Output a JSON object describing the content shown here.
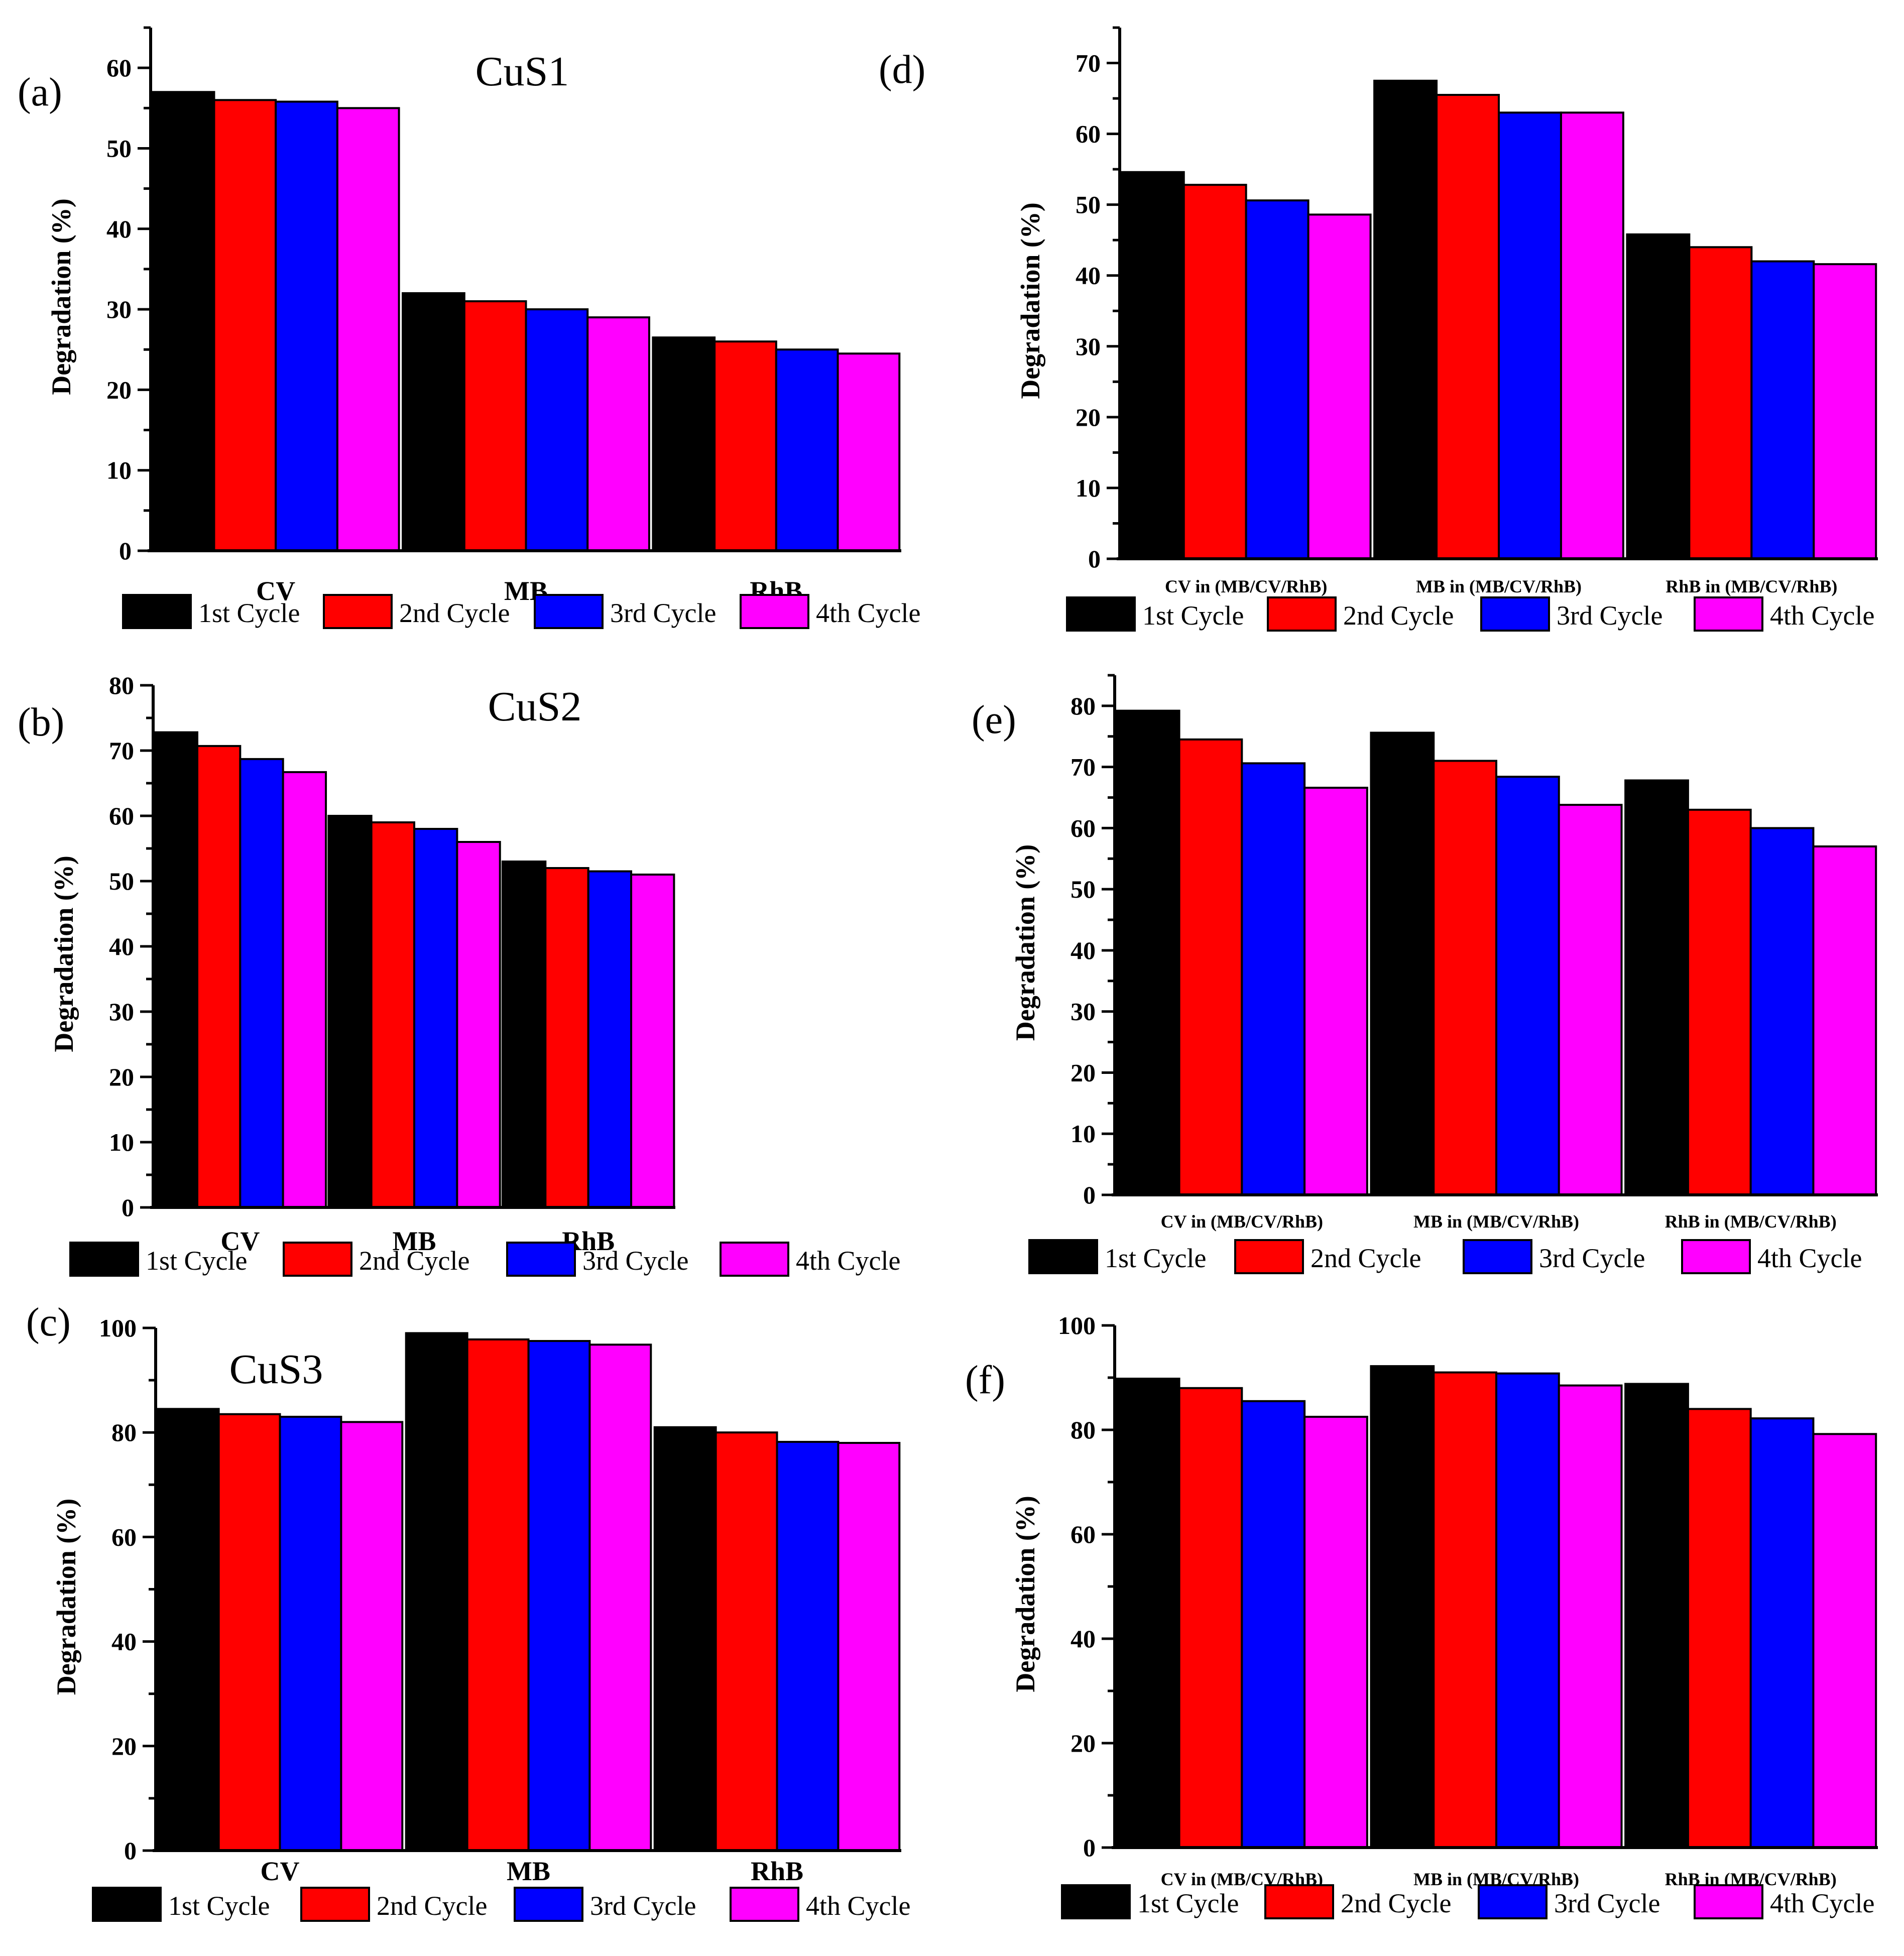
{
  "figure": {
    "colors": {
      "series": [
        "#000000",
        "#ff0000",
        "#0000ff",
        "#ff00ff"
      ],
      "axis": "#000000",
      "background": "#ffffff"
    }
  },
  "chart_data": [
    {
      "id": "a",
      "type": "bar",
      "panel_label": "(a)",
      "title": "CuS1",
      "ylabel": "Degradation (%)",
      "xlabel": "",
      "ylim": [
        0,
        65
      ],
      "yticks": [
        0,
        10,
        20,
        30,
        40,
        50,
        60
      ],
      "categories": [
        "CV",
        "MB",
        "RhB"
      ],
      "legend": "bottom",
      "series": [
        {
          "name": "1st Cycle",
          "values": [
            57,
            32,
            26.5
          ]
        },
        {
          "name": "2nd Cycle",
          "values": [
            56,
            31,
            26
          ]
        },
        {
          "name": "3rd Cycle",
          "values": [
            55.8,
            30,
            25
          ]
        },
        {
          "name": "4th Cycle",
          "values": [
            55,
            29,
            24.5
          ]
        }
      ]
    },
    {
      "id": "b",
      "type": "bar",
      "panel_label": "(b)",
      "title": "CuS2",
      "ylabel": "Degradation (%)",
      "xlabel": "",
      "ylim": [
        0,
        80
      ],
      "yticks": [
        0,
        10,
        20,
        30,
        40,
        50,
        60,
        70,
        80
      ],
      "categories": [
        "CV",
        "MB",
        "RhB"
      ],
      "legend": "bottom",
      "series": [
        {
          "name": "1st Cycle",
          "values": [
            72.8,
            60,
            53
          ]
        },
        {
          "name": "2nd Cycle",
          "values": [
            70.7,
            59,
            52
          ]
        },
        {
          "name": "3rd Cycle",
          "values": [
            68.7,
            58,
            51.5
          ]
        },
        {
          "name": "4th Cycle",
          "values": [
            66.7,
            56,
            51
          ]
        }
      ]
    },
    {
      "id": "c",
      "type": "bar",
      "panel_label": "(c)",
      "title": "CuS3",
      "ylabel": "Degradation (%)",
      "xlabel": "",
      "ylim": [
        0,
        100
      ],
      "yticks": [
        0,
        20,
        40,
        60,
        80,
        100
      ],
      "categories": [
        "CV",
        "MB",
        "RhB"
      ],
      "legend": "bottom",
      "series": [
        {
          "name": "1st Cycle",
          "values": [
            84.5,
            99,
            81
          ]
        },
        {
          "name": "2nd Cycle",
          "values": [
            83.5,
            97.8,
            80
          ]
        },
        {
          "name": "3rd Cycle",
          "values": [
            83,
            97.5,
            78.2
          ]
        },
        {
          "name": "4th Cycle",
          "values": [
            82,
            96.8,
            78
          ]
        }
      ]
    },
    {
      "id": "d",
      "type": "bar",
      "panel_label": "(d)",
      "title": "",
      "ylabel": "Degradation (%)",
      "xlabel": "",
      "ylim": [
        0,
        75
      ],
      "yticks": [
        0,
        10,
        20,
        30,
        40,
        50,
        60,
        70
      ],
      "categories": [
        "CV in (MB/CV/RhB)",
        "MB in (MB/CV/RhB)",
        "RhB in (MB/CV/RhB)"
      ],
      "legend": "bottom",
      "series": [
        {
          "name": "1st Cycle",
          "values": [
            54.6,
            67.5,
            45.8
          ]
        },
        {
          "name": "2nd Cycle",
          "values": [
            52.8,
            65.5,
            44
          ]
        },
        {
          "name": "3rd Cycle",
          "values": [
            50.6,
            63,
            42
          ]
        },
        {
          "name": "4th Cycle",
          "values": [
            48.6,
            63,
            41.6
          ]
        }
      ]
    },
    {
      "id": "e",
      "type": "bar",
      "panel_label": "(e)",
      "title": "",
      "ylabel": "Degradation (%)",
      "xlabel": "",
      "ylim": [
        0,
        85
      ],
      "yticks": [
        0,
        10,
        20,
        30,
        40,
        50,
        60,
        70,
        80
      ],
      "categories": [
        "CV in (MB/CV/RhB)",
        "MB in (MB/CV/RhB)",
        "RhB in (MB/CV/RhB)"
      ],
      "legend": "bottom",
      "series": [
        {
          "name": "1st Cycle",
          "values": [
            79.2,
            75.6,
            67.8
          ]
        },
        {
          "name": "2nd Cycle",
          "values": [
            74.5,
            71,
            63
          ]
        },
        {
          "name": "3rd Cycle",
          "values": [
            70.6,
            68.4,
            60
          ]
        },
        {
          "name": "4th Cycle",
          "values": [
            66.6,
            63.8,
            57
          ]
        }
      ]
    },
    {
      "id": "f",
      "type": "bar",
      "panel_label": "(f)",
      "title": "",
      "ylabel": "Degradation (%)",
      "xlabel": "",
      "ylim": [
        0,
        100
      ],
      "yticks": [
        0,
        20,
        40,
        60,
        80,
        100
      ],
      "categories": [
        "CV in (MB/CV/RhB)",
        "MB in (MB/CV/RhB)",
        "RhB in (MB/CV/RhB)"
      ],
      "legend": "bottom",
      "series": [
        {
          "name": "1st Cycle",
          "values": [
            89.8,
            92.2,
            88.8
          ]
        },
        {
          "name": "2nd Cycle",
          "values": [
            88,
            91,
            84
          ]
        },
        {
          "name": "3rd Cycle",
          "values": [
            85.5,
            90.8,
            82.2
          ]
        },
        {
          "name": "4th Cycle",
          "values": [
            82.5,
            88.5,
            79.2
          ]
        }
      ]
    }
  ]
}
